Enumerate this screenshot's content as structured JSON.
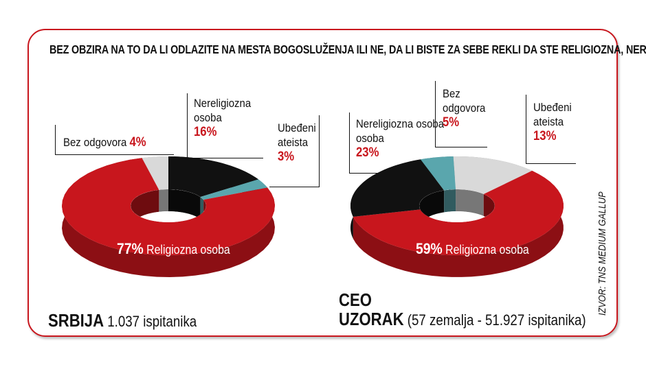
{
  "title": "BEZ OBZIRA NA TO DA LI ODLAZITE NA MESTA BOGOSLUŽENJA ILI NE, DA LI BISTE ZA SEBE REKLI DA STE RELIGIOZNA, NERELIGIOZNA OSOBA ILI UBEĐENI ATEISTA?",
  "source": "IZVOR: TNS MEDIUM GALLUP",
  "chart_data": [
    {
      "type": "pie",
      "variant": "3d-donut",
      "title": "SRBIJA",
      "subtitle": "1.037 ispitanika",
      "slices": [
        {
          "label": "Bez odgovora",
          "value": 4,
          "pct": "4%",
          "color": "#d9d9d9"
        },
        {
          "label": "Nereligiozna osoba",
          "value": 16,
          "pct": "16%",
          "color": "#111111"
        },
        {
          "label": "Ubeđeni ateista",
          "value": 3,
          "pct": "3%",
          "color": "#5aa6ad"
        },
        {
          "label": "Religiozna osoba",
          "value": 77,
          "pct": "77%",
          "color": "#c8161d"
        }
      ]
    },
    {
      "type": "pie",
      "variant": "3d-donut",
      "title": "CEO UZORAK",
      "title_line1": "CEO",
      "title_line2": "UZORAK",
      "subtitle": "(57 zemalja - 51.927 ispitanika)",
      "slices": [
        {
          "label": "Ubeđeni ateista",
          "value": 13,
          "pct": "13%",
          "color": "#d9d9d9"
        },
        {
          "label": "Religiozna osoba",
          "value": 59,
          "pct": "59%",
          "color": "#c8161d"
        },
        {
          "label": "Nereligiozna osoba",
          "value": 23,
          "pct": "23%",
          "color": "#111111"
        },
        {
          "label": "Bez odgovora",
          "value": 5,
          "pct": "5%",
          "color": "#5aa6ad"
        }
      ]
    }
  ],
  "labels": {
    "l_bez1": "Bez odgovora",
    "l_nerel1a": "Nereligiozna",
    "l_nerel1b": "osoba",
    "l_ate1a": "Ubeđeni",
    "l_ate1b": "ateista",
    "l_rel": "Religiozna osoba",
    "r_bez1": "Bez",
    "r_bez2": "odgovora"
  }
}
